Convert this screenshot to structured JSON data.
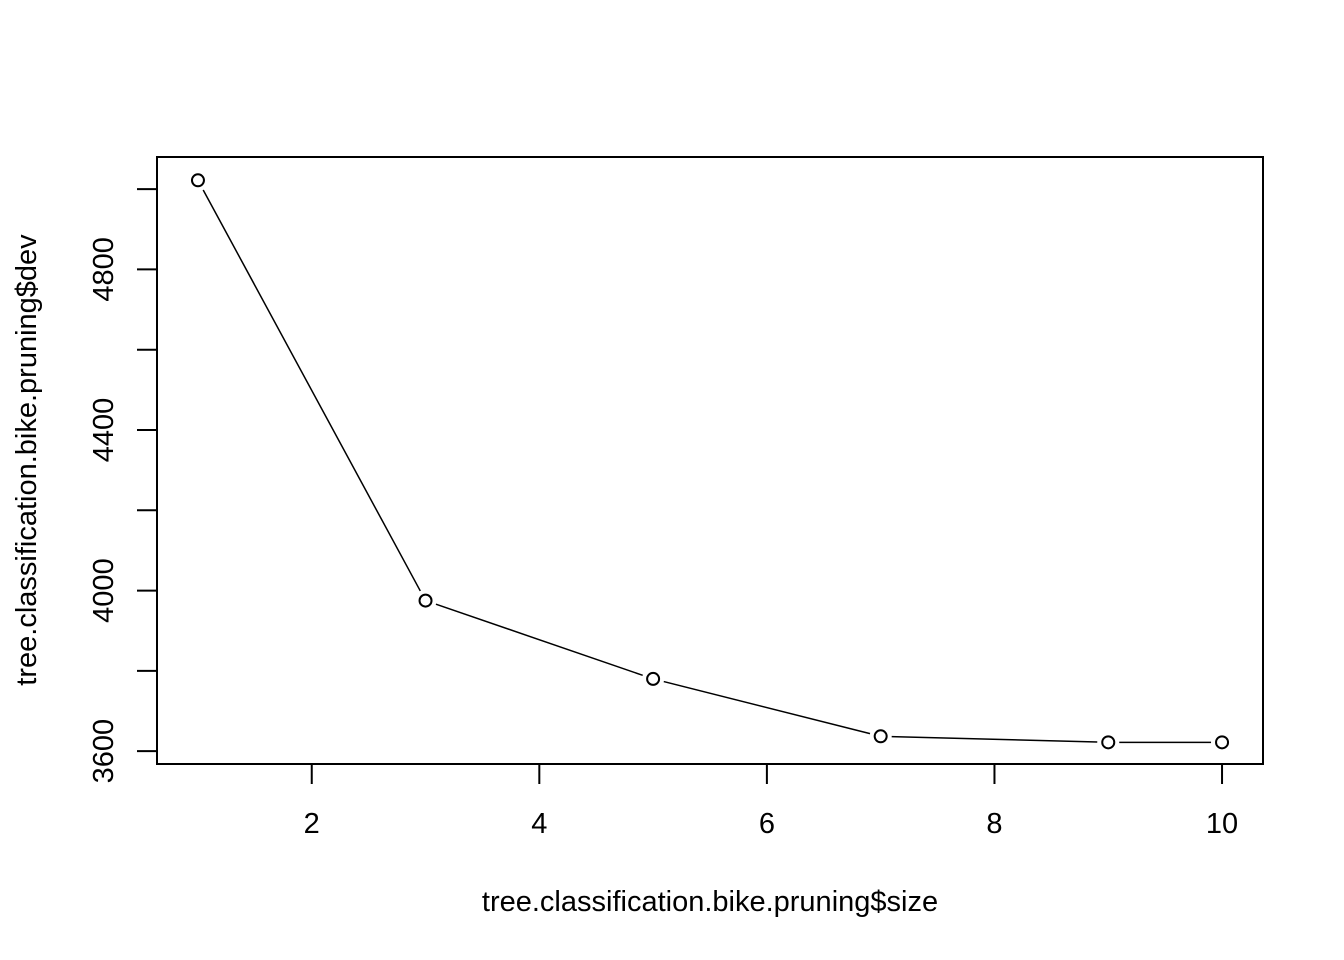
{
  "chart_data": {
    "type": "line",
    "title": "",
    "xlabel": "tree.classification.bike.pruning$size",
    "ylabel": "tree.classification.bike.pruning$dev",
    "xlim": [
      0.64,
      10.36
    ],
    "ylim": [
      3568,
      5080
    ],
    "x_ticks": [
      2,
      4,
      6,
      8,
      10
    ],
    "y_ticks": [
      3600,
      3800,
      4000,
      4200,
      4400,
      4600,
      4800,
      5000
    ],
    "y_tick_labels": [
      "3600",
      "",
      "4000",
      "",
      "4400",
      "",
      "4800",
      ""
    ],
    "grid": false,
    "series": [
      {
        "x": [
          1,
          3,
          5,
          7,
          9,
          10
        ],
        "y": [
          5022,
          3975,
          3780,
          3637,
          3622,
          3622
        ]
      }
    ]
  }
}
